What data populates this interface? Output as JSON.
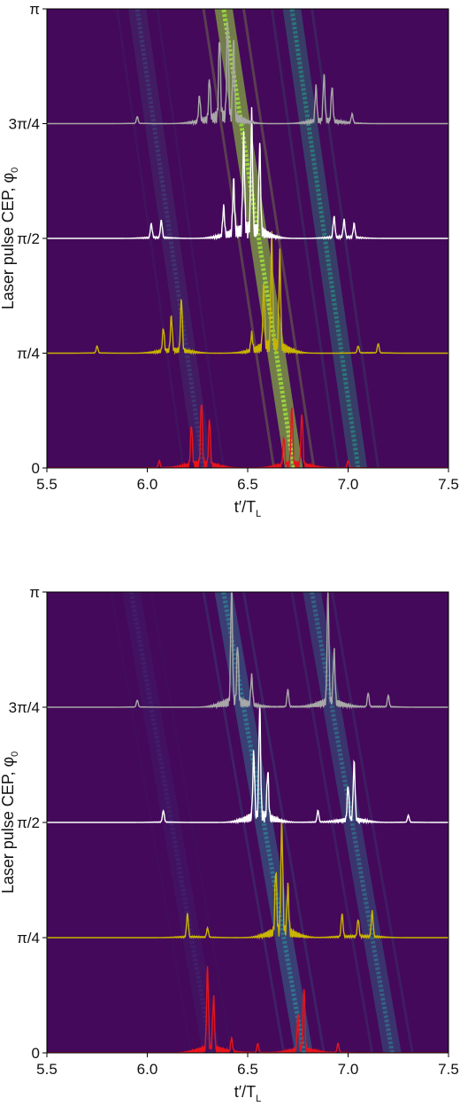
{
  "chart_data": [
    {
      "type": "heatmap",
      "xlabel": "t′/T",
      "xlabel_sub": "L",
      "ylabel": "Laser pulse CEP, φ",
      "ylabel_sub": "0",
      "xlim": [
        5.5,
        7.5
      ],
      "ylim": [
        0,
        3.14159
      ],
      "xticks": [
        5.5,
        6.0,
        6.5,
        7.0,
        7.5
      ],
      "xtick_labels": [
        "5.5",
        "6.0",
        "6.5",
        "7.0",
        "7.5"
      ],
      "yticks": [
        0,
        0.7854,
        1.5708,
        2.3562,
        3.14159
      ],
      "ytick_labels": [
        "0",
        "π/4",
        "π/2",
        "3π/4",
        "π"
      ],
      "background_color": "#44095a",
      "bands": [
        {
          "x_at_0": 6.73,
          "x_at_pi": 6.38,
          "intensity": 1.0,
          "peak_color": "#9bdc3c"
        },
        {
          "x_at_0": 6.28,
          "x_at_pi": 5.95,
          "intensity": 0.35,
          "peak_color": "#3b6a8c"
        },
        {
          "x_at_0": 7.05,
          "x_at_pi": 6.72,
          "intensity": 0.6,
          "peak_color": "#22a784"
        }
      ],
      "series": [
        {
          "phi": 0,
          "color": "#e8141c",
          "peaks": [
            [
              6.27,
              0.55
            ],
            [
              6.22,
              0.35
            ],
            [
              6.31,
              0.4
            ],
            [
              6.72,
              0.5
            ],
            [
              6.77,
              0.45
            ],
            [
              6.68,
              0.25
            ],
            [
              6.06,
              0.06
            ],
            [
              7.0,
              0.06
            ]
          ]
        },
        {
          "phi": 0.7854,
          "color": "#c9b400",
          "peaks": [
            [
              6.62,
              0.95
            ],
            [
              6.66,
              0.8
            ],
            [
              6.58,
              0.55
            ],
            [
              6.17,
              0.45
            ],
            [
              6.12,
              0.3
            ],
            [
              6.08,
              0.2
            ],
            [
              6.52,
              0.15
            ],
            [
              7.15,
              0.08
            ],
            [
              7.05,
              0.06
            ],
            [
              5.75,
              0.06
            ]
          ]
        },
        {
          "phi": 1.5708,
          "color": "#ffffff",
          "peaks": [
            [
              6.52,
              1.0
            ],
            [
              6.48,
              0.8
            ],
            [
              6.56,
              0.75
            ],
            [
              6.43,
              0.45
            ],
            [
              6.38,
              0.25
            ],
            [
              6.07,
              0.15
            ],
            [
              6.02,
              0.12
            ],
            [
              6.93,
              0.18
            ],
            [
              6.98,
              0.15
            ],
            [
              7.03,
              0.12
            ]
          ]
        },
        {
          "phi": 2.3562,
          "color": "#a8a8a8",
          "peaks": [
            [
              6.4,
              0.85
            ],
            [
              6.36,
              0.7
            ],
            [
              6.43,
              0.65
            ],
            [
              6.31,
              0.35
            ],
            [
              6.26,
              0.22
            ],
            [
              6.88,
              0.4
            ],
            [
              6.84,
              0.3
            ],
            [
              6.92,
              0.3
            ],
            [
              5.95,
              0.06
            ],
            [
              7.02,
              0.08
            ]
          ]
        }
      ]
    },
    {
      "type": "heatmap",
      "xlabel": "t′/T",
      "xlabel_sub": "L",
      "ylabel": "Laser pulse CEP, φ",
      "ylabel_sub": "0",
      "xlim": [
        5.5,
        7.5
      ],
      "ylim": [
        0,
        3.14159
      ],
      "xticks": [
        5.5,
        6.0,
        6.5,
        7.0,
        7.5
      ],
      "xtick_labels": [
        "5.5",
        "6.0",
        "6.5",
        "7.0",
        "7.5"
      ],
      "yticks": [
        0,
        0.7854,
        1.5708,
        2.3562,
        3.14159
      ],
      "ytick_labels": [
        "0",
        "π/4",
        "π/2",
        "3π/4",
        "π"
      ],
      "background_color": "#44095a",
      "bands": [
        {
          "x_at_0": 6.78,
          "x_at_pi": 6.38,
          "intensity": 0.75,
          "peak_color": "#2c8a98"
        },
        {
          "x_at_0": 7.22,
          "x_at_pi": 6.82,
          "intensity": 0.6,
          "peak_color": "#2c8a98"
        },
        {
          "x_at_0": 6.32,
          "x_at_pi": 5.92,
          "intensity": 0.25,
          "peak_color": "#3b4f8c"
        }
      ],
      "series": [
        {
          "phi": 0,
          "color": "#e8141c",
          "peaks": [
            [
              6.3,
              0.7
            ],
            [
              6.33,
              0.45
            ],
            [
              6.78,
              0.55
            ],
            [
              6.75,
              0.3
            ],
            [
              6.42,
              0.12
            ],
            [
              6.55,
              0.08
            ],
            [
              6.95,
              0.08
            ]
          ]
        },
        {
          "phi": 0.7854,
          "color": "#c9b400",
          "peaks": [
            [
              6.67,
              0.95
            ],
            [
              6.64,
              0.55
            ],
            [
              6.7,
              0.4
            ],
            [
              6.2,
              0.2
            ],
            [
              6.97,
              0.2
            ],
            [
              7.12,
              0.22
            ],
            [
              7.05,
              0.15
            ],
            [
              6.3,
              0.08
            ]
          ]
        },
        {
          "phi": 1.5708,
          "color": "#ffffff",
          "peaks": [
            [
              6.56,
              0.95
            ],
            [
              6.53,
              0.55
            ],
            [
              6.6,
              0.4
            ],
            [
              7.03,
              0.5
            ],
            [
              7.0,
              0.3
            ],
            [
              6.08,
              0.1
            ],
            [
              6.85,
              0.1
            ],
            [
              7.3,
              0.06
            ]
          ]
        },
        {
          "phi": 2.3562,
          "color": "#a8a8a8",
          "peaks": [
            [
              6.42,
              1.0
            ],
            [
              6.45,
              0.5
            ],
            [
              6.9,
              0.95
            ],
            [
              6.93,
              0.45
            ],
            [
              6.52,
              0.25
            ],
            [
              6.7,
              0.15
            ],
            [
              7.1,
              0.12
            ],
            [
              5.95,
              0.06
            ],
            [
              7.2,
              0.1
            ]
          ]
        }
      ]
    }
  ]
}
